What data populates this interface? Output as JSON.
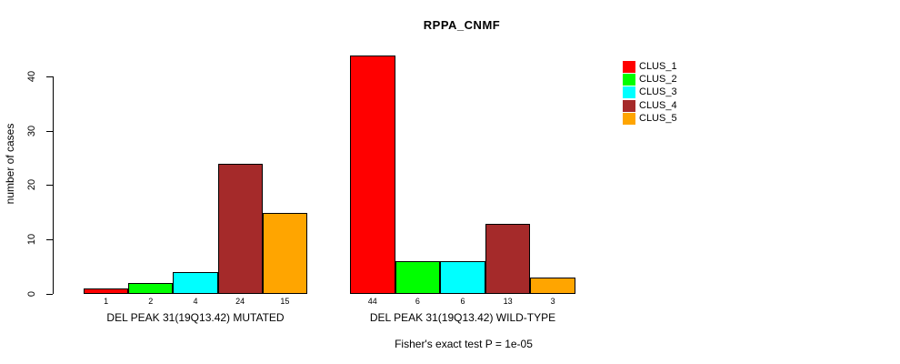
{
  "chart_data": {
    "type": "bar",
    "title": "RPPA_CNMF",
    "ylabel": "number of cases",
    "xlabel": "",
    "ylim": [
      0,
      45
    ],
    "yticks": [
      0,
      10,
      20,
      30,
      40
    ],
    "grid": false,
    "legend_position": "right",
    "bar_value_labels_shown": true,
    "categories": [
      "DEL PEAK 31(19Q13.42) MUTATED",
      "DEL PEAK 31(19Q13.42) WILD-TYPE"
    ],
    "series": [
      {
        "name": "CLUS_1",
        "color": "#FF0000",
        "values": [
          1,
          44
        ]
      },
      {
        "name": "CLUS_2",
        "color": "#00FF00",
        "values": [
          2,
          6
        ]
      },
      {
        "name": "CLUS_3",
        "color": "#00FFFF",
        "values": [
          4,
          6
        ]
      },
      {
        "name": "CLUS_4",
        "color": "#A52A2A",
        "values": [
          24,
          13
        ]
      },
      {
        "name": "CLUS_5",
        "color": "#FFA500",
        "values": [
          15,
          3
        ]
      }
    ],
    "annotation": "Fisher's exact test P = 1e-05"
  }
}
